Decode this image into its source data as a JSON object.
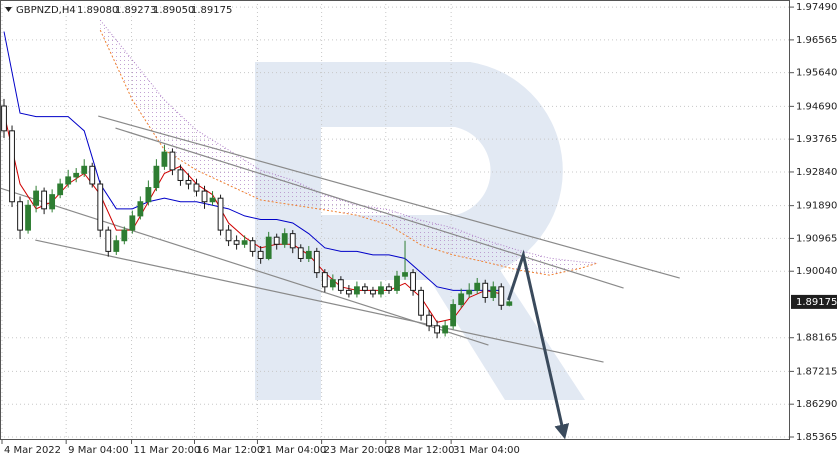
{
  "chart_data": {
    "type": "candlestick",
    "symbol": "GBPNZD,H4",
    "ohlc_labels": [
      "1.89080",
      "1.89273",
      "1.89050",
      "1.89175"
    ],
    "last_price": 1.89175,
    "ylim": [
      1.8528,
      1.9769
    ],
    "xlim": [
      -0.5,
      98
    ],
    "yticks": [
      {
        "value": 1.9749,
        "label": "1.97490"
      },
      1.96565,
      {
        "value": 1.9564,
        "label": "1.95640"
      },
      {
        "value": 1.9469,
        "label": "1.94690"
      },
      1.93765,
      {
        "value": 1.9284,
        "label": "1.92840"
      },
      {
        "value": 1.9189,
        "label": "1.91890"
      },
      1.90965,
      {
        "value": 1.9004,
        "label": "1.90040"
      },
      1.88165,
      1.87215,
      {
        "value": 1.8629,
        "label": "1.86290"
      },
      1.85365
    ],
    "xticks": [
      {
        "value": -0.25,
        "label": "4 Mar 2022"
      },
      {
        "value": 7.75,
        "label": "9 Mar 04:00"
      },
      {
        "value": 15.9,
        "label": "11 Mar 20:00"
      },
      {
        "value": 23.75,
        "label": "16 Mar 12:00"
      },
      {
        "value": 31.6,
        "label": "21 Mar 04:00"
      },
      {
        "value": 39.6,
        "label": "23 Mar 20:00"
      },
      {
        "value": 47.6,
        "label": "28 Mar 12:00"
      },
      {
        "value": 55.75,
        "label": "31 Mar 04:00"
      }
    ],
    "grid": true,
    "up_color": "#2e7d32",
    "down_color": "#1a1a1a",
    "open": [
      1.947,
      1.94,
      1.92,
      1.912,
      1.919,
      1.923,
      1.918,
      1.922,
      1.925,
      1.927,
      1.928,
      1.93,
      1.925,
      1.912,
      1.906,
      1.909,
      1.912,
      1.916,
      1.92,
      1.924,
      1.93,
      1.934,
      1.929,
      1.926,
      1.925,
      1.923,
      1.92,
      1.921,
      1.912,
      1.909,
      1.908,
      1.909,
      1.906,
      1.904,
      1.91,
      1.908,
      1.911,
      1.907,
      1.904,
      1.906,
      1.9,
      1.896,
      1.898,
      1.895,
      1.894,
      1.896,
      1.895,
      1.894,
      1.896,
      1.895,
      1.899,
      1.9,
      1.895,
      1.888,
      1.885,
      1.883,
      1.885,
      1.891,
      1.894,
      1.895,
      1.897,
      1.893,
      1.896,
      1.8908
    ],
    "high": [
      1.949,
      1.9415,
      1.9215,
      1.9205,
      1.9245,
      1.924,
      1.9235,
      1.9265,
      1.929,
      1.9295,
      1.932,
      1.931,
      1.926,
      1.913,
      1.9105,
      1.913,
      1.9175,
      1.9215,
      1.926,
      1.932,
      1.936,
      1.935,
      1.9305,
      1.928,
      1.9265,
      1.9245,
      1.923,
      1.922,
      1.9135,
      1.9105,
      1.9105,
      1.91,
      1.9075,
      1.9115,
      1.911,
      1.9125,
      1.912,
      1.908,
      1.9075,
      1.907,
      1.901,
      1.8995,
      1.899,
      1.8965,
      1.8975,
      1.897,
      1.896,
      1.8975,
      1.897,
      1.9005,
      1.909,
      1.901,
      1.896,
      1.8895,
      1.8865,
      1.8865,
      1.8925,
      1.8955,
      1.897,
      1.8985,
      1.898,
      1.8975,
      1.897,
      1.89273
    ],
    "low": [
      1.938,
      1.9185,
      1.9095,
      1.911,
      1.917,
      1.9165,
      1.917,
      1.921,
      1.924,
      1.9255,
      1.927,
      1.924,
      1.91,
      1.9045,
      1.905,
      1.908,
      1.911,
      1.915,
      1.919,
      1.923,
      1.929,
      1.9275,
      1.9245,
      1.9235,
      1.9215,
      1.918,
      1.919,
      1.9105,
      1.9075,
      1.9065,
      1.907,
      1.9045,
      1.9025,
      1.9035,
      1.9065,
      1.907,
      1.9055,
      1.903,
      1.903,
      1.8985,
      1.8945,
      1.895,
      1.894,
      1.893,
      1.893,
      1.894,
      1.893,
      1.893,
      1.894,
      1.894,
      1.898,
      1.8935,
      1.8865,
      1.8835,
      1.8815,
      1.882,
      1.884,
      1.89,
      1.893,
      1.894,
      1.8915,
      1.892,
      1.8895,
      1.8905
    ],
    "close": [
      1.94,
      1.92,
      1.912,
      1.919,
      1.923,
      1.918,
      1.922,
      1.925,
      1.927,
      1.928,
      1.93,
      1.925,
      1.912,
      1.906,
      1.909,
      1.912,
      1.916,
      1.92,
      1.924,
      1.93,
      1.934,
      1.929,
      1.926,
      1.925,
      1.923,
      1.92,
      1.921,
      1.912,
      1.909,
      1.908,
      1.909,
      1.906,
      1.904,
      1.91,
      1.908,
      1.911,
      1.907,
      1.904,
      1.906,
      1.9,
      1.896,
      1.898,
      1.895,
      1.894,
      1.896,
      1.895,
      1.894,
      1.896,
      1.895,
      1.899,
      1.9,
      1.895,
      1.888,
      1.885,
      1.883,
      1.885,
      1.891,
      1.894,
      1.895,
      1.897,
      1.893,
      1.896,
      1.8908,
      1.89175
    ],
    "tenkan": {
      "color": "#d00000",
      "x": [
        0,
        2,
        4,
        6,
        8,
        10,
        12,
        14,
        16,
        18,
        20,
        22,
        24,
        26,
        28,
        30,
        32,
        34,
        36,
        38,
        40,
        42,
        44,
        46,
        48,
        50,
        52,
        54,
        56,
        58,
        60,
        62
      ],
      "values": [
        1.945,
        1.925,
        1.918,
        1.92,
        1.925,
        1.928,
        1.922,
        1.912,
        1.912,
        1.92,
        1.928,
        1.93,
        1.925,
        1.922,
        1.914,
        1.91,
        1.907,
        1.908,
        1.908,
        1.905,
        1.9,
        1.896,
        1.895,
        1.895,
        1.895,
        1.897,
        1.893,
        1.886,
        1.887,
        1.893,
        1.895,
        1.894
      ]
    },
    "kijun": {
      "color": "#0000c8",
      "x": [
        0,
        2,
        4,
        6,
        8,
        10,
        12,
        14,
        16,
        18,
        20,
        22,
        24,
        26,
        28,
        30,
        32,
        34,
        36,
        38,
        40,
        42,
        44,
        46,
        48,
        50,
        52,
        54,
        56,
        58,
        60,
        62
      ],
      "values": [
        1.968,
        1.945,
        1.944,
        1.944,
        1.944,
        1.94,
        1.925,
        1.918,
        1.918,
        1.92,
        1.921,
        1.92,
        1.92,
        1.919,
        1.918,
        1.916,
        1.915,
        1.915,
        1.914,
        1.911,
        1.907,
        1.906,
        1.906,
        1.905,
        1.905,
        1.904,
        1.9,
        1.896,
        1.895,
        1.895,
        1.895,
        1.895
      ]
    },
    "span_a": {
      "color": "#f08030",
      "x": [
        12,
        16,
        20,
        24,
        28,
        32,
        36,
        40,
        44,
        48,
        52,
        56,
        60,
        64,
        68,
        72,
        74
      ],
      "values": [
        1.9684,
        1.9487,
        1.9346,
        1.9289,
        1.9247,
        1.9205,
        1.9191,
        1.9177,
        1.9162,
        1.9134,
        1.9078,
        1.905,
        1.903,
        1.9008,
        1.8993,
        1.9013,
        1.9027
      ]
    },
    "span_b": {
      "color": "#b080c8",
      "x": [
        12,
        16,
        20,
        24,
        28,
        32,
        36,
        40,
        44,
        48,
        52,
        56,
        60,
        64,
        68,
        72,
        74
      ],
      "values": [
        1.9712,
        1.96,
        1.9487,
        1.9402,
        1.9346,
        1.9289,
        1.9261,
        1.9219,
        1.9191,
        1.9177,
        1.9148,
        1.9126,
        1.9092,
        1.9064,
        1.9041,
        1.903,
        1.9027
      ]
    },
    "trend_lines": [
      {
        "x": [
          11.75,
          84.25
        ],
        "values": [
          1.94416,
          1.89848
        ]
      },
      {
        "x": [
          13.9,
          77.25
        ],
        "values": [
          1.94078,
          1.89566
        ]
      },
      {
        "x": [
          -0.5,
          60.4
        ],
        "values": [
          1.92386,
          1.87958
        ]
      },
      {
        "x": [
          3.9,
          74.75
        ],
        "values": [
          1.90919,
          1.87479
        ]
      }
    ],
    "forecast": {
      "color": "#3a4a5c",
      "x": [
        62.9,
        64.75,
        69.75
      ],
      "values": [
        1.89227,
        1.90496,
        1.85505
      ]
    }
  }
}
